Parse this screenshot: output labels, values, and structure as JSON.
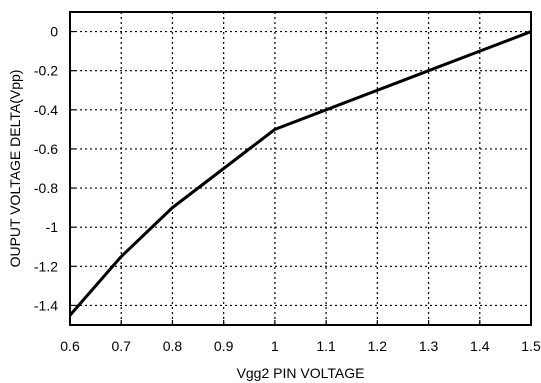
{
  "chart_data": {
    "type": "line",
    "title": "",
    "xlabel": "Vgg2 PIN VOLTAGE",
    "ylabel": "OUPUT VOLTAGE DELTA(Vpp)",
    "xlim": [
      0.6,
      1.5
    ],
    "ylim": [
      -1.5,
      0.1
    ],
    "xticks": [
      0.6,
      0.7,
      0.8,
      0.9,
      1.0,
      1.1,
      1.2,
      1.3,
      1.4,
      1.5
    ],
    "xtick_labels": [
      "0.6",
      "0.7",
      "0.8",
      "0.9",
      "1",
      "1.1",
      "1.2",
      "1.3",
      "1.4",
      "1.5"
    ],
    "yticks": [
      0,
      -0.2,
      -0.4,
      -0.6,
      -0.8,
      -1.0,
      -1.2,
      -1.4
    ],
    "ytick_labels": [
      "0",
      "-0.2",
      "-0.4",
      "-0.6",
      "-0.8",
      "-1",
      "-1.2",
      "-1.4"
    ],
    "grid": true,
    "grid_style": "dotted",
    "series": [
      {
        "color": "#000000",
        "x": [
          0.6,
          0.7,
          0.8,
          0.9,
          1.0,
          1.1,
          1.2,
          1.3,
          1.4,
          1.5
        ],
        "y": [
          -1.45,
          -1.15,
          -0.9,
          -0.7,
          -0.5,
          -0.4,
          -0.3,
          -0.2,
          -0.1,
          0.0
        ]
      }
    ]
  }
}
